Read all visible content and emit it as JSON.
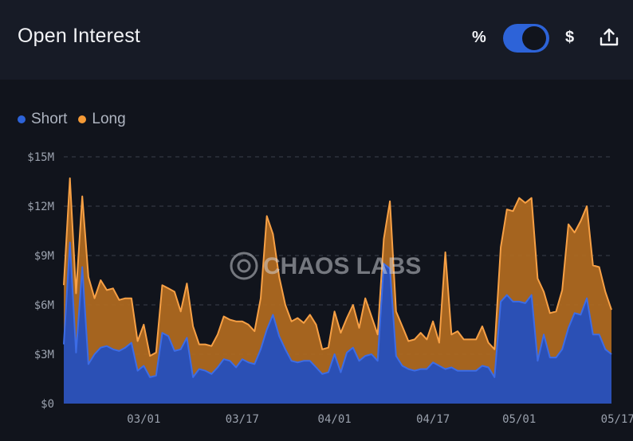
{
  "header": {
    "title": "Open Interest",
    "unit_percent": "%",
    "unit_dollar": "$"
  },
  "toggle": {
    "state": "on",
    "color": "#2d63d8"
  },
  "legend": [
    {
      "name": "Short",
      "color": "#2d63d8"
    },
    {
      "name": "Long",
      "color": "#f59a36"
    }
  ],
  "watermark": "CHAOS LABS",
  "chart_data": {
    "type": "area",
    "stacked": true,
    "y_ticks": [
      "$0",
      "$3M",
      "$6M",
      "$9M",
      "$12M",
      "$15M"
    ],
    "ylim": [
      0,
      15
    ],
    "y_unit": "$M",
    "x_ticks": [
      {
        "label": "03/01",
        "day": 13
      },
      {
        "label": "03/17",
        "day": 29
      },
      {
        "label": "04/01",
        "day": 44
      },
      {
        "label": "04/17",
        "day": 60
      },
      {
        "label": "05/01",
        "day": 74
      },
      {
        "label": "05/17",
        "day": 90
      }
    ],
    "series": [
      {
        "name": "Short",
        "color": "#2d63d8",
        "points": [
          [
            0,
            3.6
          ],
          [
            1,
            9.8
          ],
          [
            2,
            3.1
          ],
          [
            3,
            8.3
          ],
          [
            4,
            2.4
          ],
          [
            5,
            3.0
          ],
          [
            6,
            3.4
          ],
          [
            7,
            3.5
          ],
          [
            8,
            3.3
          ],
          [
            9,
            3.2
          ],
          [
            10,
            3.4
          ],
          [
            11,
            3.7
          ],
          [
            12,
            2.0
          ],
          [
            13,
            2.3
          ],
          [
            14,
            1.6
          ],
          [
            15,
            1.7
          ],
          [
            16,
            4.3
          ],
          [
            17,
            4.1
          ],
          [
            18,
            3.2
          ],
          [
            19,
            3.3
          ],
          [
            20,
            4.0
          ],
          [
            21,
            1.6
          ],
          [
            22,
            2.1
          ],
          [
            23,
            2.0
          ],
          [
            24,
            1.8
          ],
          [
            25,
            2.2
          ],
          [
            26,
            2.7
          ],
          [
            27,
            2.6
          ],
          [
            28,
            2.2
          ],
          [
            29,
            2.7
          ],
          [
            30,
            2.5
          ],
          [
            31,
            2.4
          ],
          [
            32,
            3.3
          ],
          [
            33,
            4.5
          ],
          [
            34,
            5.4
          ],
          [
            35,
            4.1
          ],
          [
            36,
            3.3
          ],
          [
            37,
            2.6
          ],
          [
            38,
            2.5
          ],
          [
            39,
            2.6
          ],
          [
            40,
            2.6
          ],
          [
            41,
            2.2
          ],
          [
            42,
            1.8
          ],
          [
            43,
            1.9
          ],
          [
            44,
            3.0
          ],
          [
            45,
            1.9
          ],
          [
            46,
            3.1
          ],
          [
            47,
            3.4
          ],
          [
            48,
            2.6
          ],
          [
            49,
            2.9
          ],
          [
            50,
            3.0
          ],
          [
            51,
            2.6
          ],
          [
            52,
            8.5
          ],
          [
            53,
            8.2
          ],
          [
            54,
            2.9
          ],
          [
            55,
            2.3
          ],
          [
            56,
            2.1
          ],
          [
            57,
            2.0
          ],
          [
            58,
            2.1
          ],
          [
            59,
            2.1
          ],
          [
            60,
            2.5
          ],
          [
            61,
            2.3
          ],
          [
            62,
            2.1
          ],
          [
            63,
            2.2
          ],
          [
            64,
            2.0
          ],
          [
            65,
            2.0
          ],
          [
            66,
            2.0
          ],
          [
            67,
            2.0
          ],
          [
            68,
            2.3
          ],
          [
            69,
            2.2
          ],
          [
            70,
            1.6
          ],
          [
            71,
            6.2
          ],
          [
            72,
            6.6
          ],
          [
            73,
            6.2
          ],
          [
            74,
            6.2
          ],
          [
            75,
            6.1
          ],
          [
            76,
            6.6
          ],
          [
            77,
            2.6
          ],
          [
            78,
            4.2
          ],
          [
            79,
            2.8
          ],
          [
            80,
            2.8
          ],
          [
            81,
            3.3
          ],
          [
            82,
            4.6
          ],
          [
            83,
            5.5
          ],
          [
            84,
            5.4
          ],
          [
            85,
            6.4
          ],
          [
            86,
            4.2
          ],
          [
            87,
            4.2
          ],
          [
            88,
            3.3
          ],
          [
            89,
            3.0
          ]
        ]
      },
      {
        "name": "Long",
        "color": "#f59a36",
        "points": [
          [
            0,
            3.6
          ],
          [
            1,
            3.9
          ],
          [
            2,
            3.6
          ],
          [
            3,
            4.3
          ],
          [
            4,
            5.3
          ],
          [
            5,
            3.4
          ],
          [
            6,
            4.1
          ],
          [
            7,
            3.4
          ],
          [
            8,
            3.7
          ],
          [
            9,
            3.1
          ],
          [
            10,
            3.0
          ],
          [
            11,
            2.7
          ],
          [
            12,
            1.8
          ],
          [
            13,
            2.5
          ],
          [
            14,
            1.3
          ],
          [
            15,
            1.4
          ],
          [
            16,
            2.9
          ],
          [
            17,
            2.9
          ],
          [
            18,
            3.6
          ],
          [
            19,
            2.3
          ],
          [
            20,
            3.3
          ],
          [
            21,
            3.1
          ],
          [
            22,
            1.5
          ],
          [
            23,
            1.6
          ],
          [
            24,
            1.7
          ],
          [
            25,
            2.0
          ],
          [
            26,
            2.6
          ],
          [
            27,
            2.5
          ],
          [
            28,
            2.8
          ],
          [
            29,
            2.3
          ],
          [
            30,
            2.3
          ],
          [
            31,
            2.0
          ],
          [
            32,
            3.1
          ],
          [
            33,
            6.9
          ],
          [
            34,
            4.9
          ],
          [
            35,
            3.6
          ],
          [
            36,
            2.7
          ],
          [
            37,
            2.4
          ],
          [
            38,
            2.7
          ],
          [
            39,
            2.3
          ],
          [
            40,
            2.8
          ],
          [
            41,
            2.6
          ],
          [
            42,
            1.5
          ],
          [
            43,
            1.5
          ],
          [
            44,
            2.6
          ],
          [
            45,
            2.4
          ],
          [
            46,
            2.1
          ],
          [
            47,
            2.6
          ],
          [
            48,
            2.0
          ],
          [
            49,
            3.5
          ],
          [
            50,
            2.3
          ],
          [
            51,
            1.6
          ],
          [
            52,
            1.5
          ],
          [
            53,
            4.1
          ],
          [
            54,
            2.7
          ],
          [
            55,
            2.4
          ],
          [
            56,
            1.7
          ],
          [
            57,
            1.9
          ],
          [
            58,
            2.2
          ],
          [
            59,
            1.8
          ],
          [
            60,
            2.5
          ],
          [
            61,
            1.4
          ],
          [
            62,
            7.1
          ],
          [
            63,
            2.0
          ],
          [
            64,
            2.4
          ],
          [
            65,
            1.9
          ],
          [
            66,
            1.9
          ],
          [
            67,
            1.9
          ],
          [
            68,
            2.4
          ],
          [
            69,
            1.5
          ],
          [
            70,
            1.7
          ],
          [
            71,
            3.3
          ],
          [
            72,
            5.2
          ],
          [
            73,
            5.5
          ],
          [
            74,
            6.3
          ],
          [
            75,
            6.1
          ],
          [
            76,
            5.9
          ],
          [
            77,
            5.0
          ],
          [
            78,
            2.6
          ],
          [
            79,
            2.7
          ],
          [
            80,
            2.8
          ],
          [
            81,
            3.6
          ],
          [
            82,
            6.3
          ],
          [
            83,
            4.9
          ],
          [
            84,
            5.7
          ],
          [
            85,
            5.6
          ],
          [
            86,
            4.2
          ],
          [
            87,
            4.1
          ],
          [
            88,
            3.5
          ],
          [
            89,
            2.7
          ]
        ]
      }
    ],
    "grid": true,
    "legend_position": "top-left"
  }
}
